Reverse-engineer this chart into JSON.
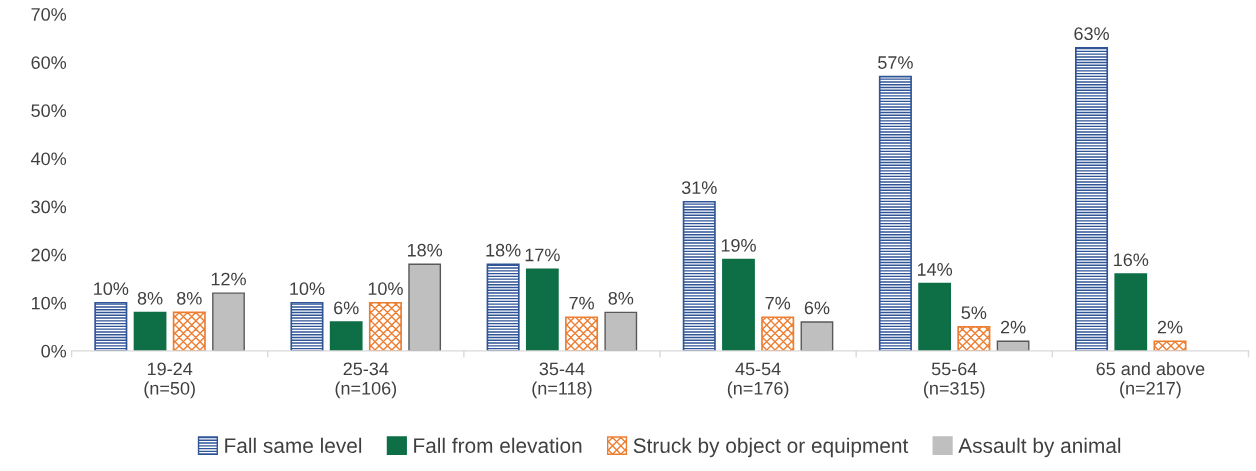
{
  "chart_data": {
    "type": "bar",
    "categories": [
      "19-24\n(n=50)",
      "25-34\n(n=106)",
      "35-44\n(n=118)",
      "45-54\n(n=176)",
      "55-64\n(n=315)",
      "65 and above\n(n=217)"
    ],
    "series": [
      {
        "name": "Fall same level",
        "color": "#2f5597",
        "values": [
          10,
          10,
          18,
          31,
          57,
          63
        ],
        "value_labels": [
          "10%",
          "10%",
          "18%",
          "31%",
          "57%",
          "63%"
        ]
      },
      {
        "name": "Fall from elevation",
        "color": "#0e6e46",
        "values": [
          8,
          6,
          17,
          19,
          14,
          16
        ],
        "value_labels": [
          "8%",
          "6%",
          "17%",
          "19%",
          "14%",
          "16%"
        ]
      },
      {
        "name": "Struck by object or equipment",
        "color": "#ed7d31",
        "values": [
          8,
          10,
          7,
          7,
          5,
          2
        ],
        "value_labels": [
          "8%",
          "10%",
          "7%",
          "7%",
          "5%",
          "2%"
        ]
      },
      {
        "name": "Assault by animal",
        "color": "#bfbfbf",
        "values": [
          12,
          18,
          8,
          6,
          2,
          null
        ],
        "value_labels": [
          "12%",
          "18%",
          "8%",
          "6%",
          "2%",
          null
        ]
      }
    ],
    "ylim": [
      0,
      70
    ],
    "yticks": [
      {
        "value": 0,
        "label": "0%"
      },
      {
        "value": 10,
        "label": "10%"
      },
      {
        "value": 20,
        "label": "20%"
      },
      {
        "value": 30,
        "label": "30%"
      },
      {
        "value": 40,
        "label": "40%"
      },
      {
        "value": 50,
        "label": "50%"
      },
      {
        "value": 60,
        "label": "60%"
      },
      {
        "value": 70,
        "label": "70%"
      }
    ],
    "grid": false,
    "legend": "bottom"
  }
}
